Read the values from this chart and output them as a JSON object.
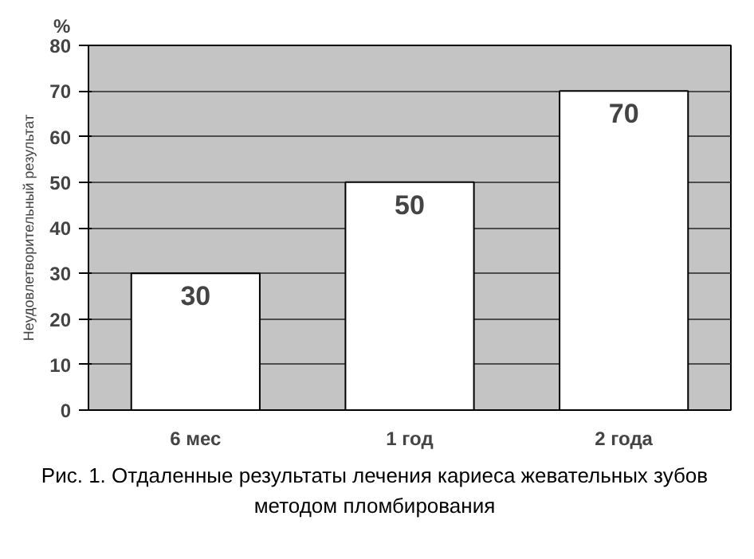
{
  "chart_data": {
    "type": "bar",
    "categories": [
      "6 мес",
      "1 год",
      "2 года"
    ],
    "values": [
      30,
      50,
      70
    ],
    "color": "#ffffff",
    "ylabel": "Неудовлетворительный результат",
    "ylim": [
      0,
      80
    ],
    "yticks": [
      0,
      10,
      20,
      30,
      40,
      50,
      60,
      70,
      80
    ],
    "grid": "y",
    "data_labels": true,
    "annotations": [
      "%",
      "Рис. 1. Отдаленные результаты лечения кариеса жевательных зубов методом пломбирования"
    ]
  }
}
